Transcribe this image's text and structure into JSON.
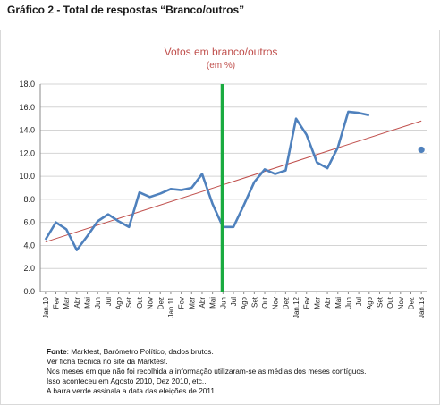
{
  "heading": "Gráfico 2 - Total de respostas “Branco/outros”",
  "chart_data": {
    "type": "line",
    "title": "Votos em branco/outros",
    "subtitle": "(em %)",
    "ylim": [
      0,
      18
    ],
    "yticks": [
      "0.0",
      "2.0",
      "4.0",
      "6.0",
      "8.0",
      "10.0",
      "12.0",
      "14.0",
      "16.0",
      "18.0"
    ],
    "grid": true,
    "categories": [
      "Jan.10",
      "Fev",
      "Mar",
      "Abr",
      "Mai",
      "Jun",
      "Jul",
      "Ago",
      "Set",
      "Out",
      "Nov",
      "Dez",
      "Jan.11",
      "Fev",
      "Mar",
      "Abr",
      "Mai",
      "Jun",
      "Jul",
      "Ago",
      "Set",
      "Out",
      "Nov",
      "Dez",
      "Jan.12",
      "Fev",
      "Mar",
      "Abr",
      "Mai",
      "Jun",
      "Jul",
      "Ago",
      "Set",
      "Out",
      "Nov",
      "Dez",
      "Jan.13"
    ],
    "series": [
      {
        "type": "line",
        "color": "#4f81bd",
        "values": [
          4.5,
          6.0,
          5.4,
          3.6,
          4.8,
          6.1,
          6.7,
          6.1,
          5.6,
          8.6,
          8.2,
          8.5,
          8.9,
          8.8,
          9.0,
          10.2,
          7.6,
          5.6,
          5.6,
          7.5,
          9.5,
          10.6,
          10.2,
          10.5,
          15.0,
          13.6,
          11.2,
          10.7,
          12.5,
          15.6,
          15.5,
          15.3,
          null,
          null,
          null,
          null,
          null
        ]
      },
      {
        "type": "trend",
        "color": "#c0504d",
        "start": 4.3,
        "end": 14.8
      },
      {
        "type": "point",
        "color": "#4f81bd",
        "x_index": 36,
        "value": 12.3
      }
    ],
    "election_marker": {
      "x_index": 17,
      "color": "#1aab40"
    }
  },
  "notes": {
    "source_label": "Fonte",
    "source_text": ": Marktest, Barómetro Político, dados brutos.",
    "line2": "Ver ficha técnica no site da Marktest.",
    "line3": "Nos meses em que não foi recolhida a informação utilizaram-se as médias dos meses contíguos.",
    "line4": "Isso aconteceu em Agosto 2010, Dez 2010, etc..",
    "line5": "A barra verde assinala a data das eleições de 2011"
  }
}
